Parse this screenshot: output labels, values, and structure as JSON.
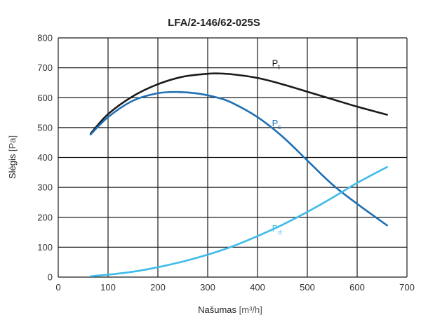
{
  "chart_data": {
    "type": "line",
    "title": "LFA/2-146/62-025S",
    "xlabel": "Našumas",
    "xlabel_unit": "[m³/h]",
    "ylabel": "Slėgis",
    "ylabel_unit": "[Pa]",
    "xlim": [
      0,
      700
    ],
    "ylim": [
      0,
      800
    ],
    "xticks": [
      0,
      100,
      200,
      300,
      400,
      500,
      600,
      700
    ],
    "yticks": [
      0,
      100,
      200,
      300,
      400,
      500,
      600,
      700,
      800
    ],
    "grid": true,
    "series": [
      {
        "name": "P",
        "subscript": "t",
        "color": "#1a1a1a",
        "x": [
          65,
          100,
          150,
          200,
          250,
          300,
          320,
          350,
          400,
          450,
          500,
          550,
          600,
          660
        ],
        "y": [
          480,
          545,
          605,
          645,
          670,
          680,
          681,
          678,
          666,
          645,
          620,
          595,
          570,
          543
        ]
      },
      {
        "name": "P",
        "subscript": "s",
        "color": "#1e6fb3",
        "x": [
          65,
          100,
          150,
          200,
          240,
          280,
          320,
          350,
          400,
          450,
          500,
          550,
          600,
          660
        ],
        "y": [
          477,
          535,
          590,
          615,
          619,
          614,
          600,
          582,
          535,
          470,
          390,
          310,
          245,
          173
        ]
      },
      {
        "name": "P",
        "subscript": "d",
        "color": "#3fbbe8",
        "x": [
          65,
          100,
          150,
          200,
          250,
          300,
          350,
          400,
          450,
          500,
          550,
          600,
          660
        ],
        "y": [
          3,
          8,
          18,
          33,
          52,
          75,
          103,
          137,
          175,
          218,
          265,
          315,
          368
        ]
      }
    ]
  }
}
